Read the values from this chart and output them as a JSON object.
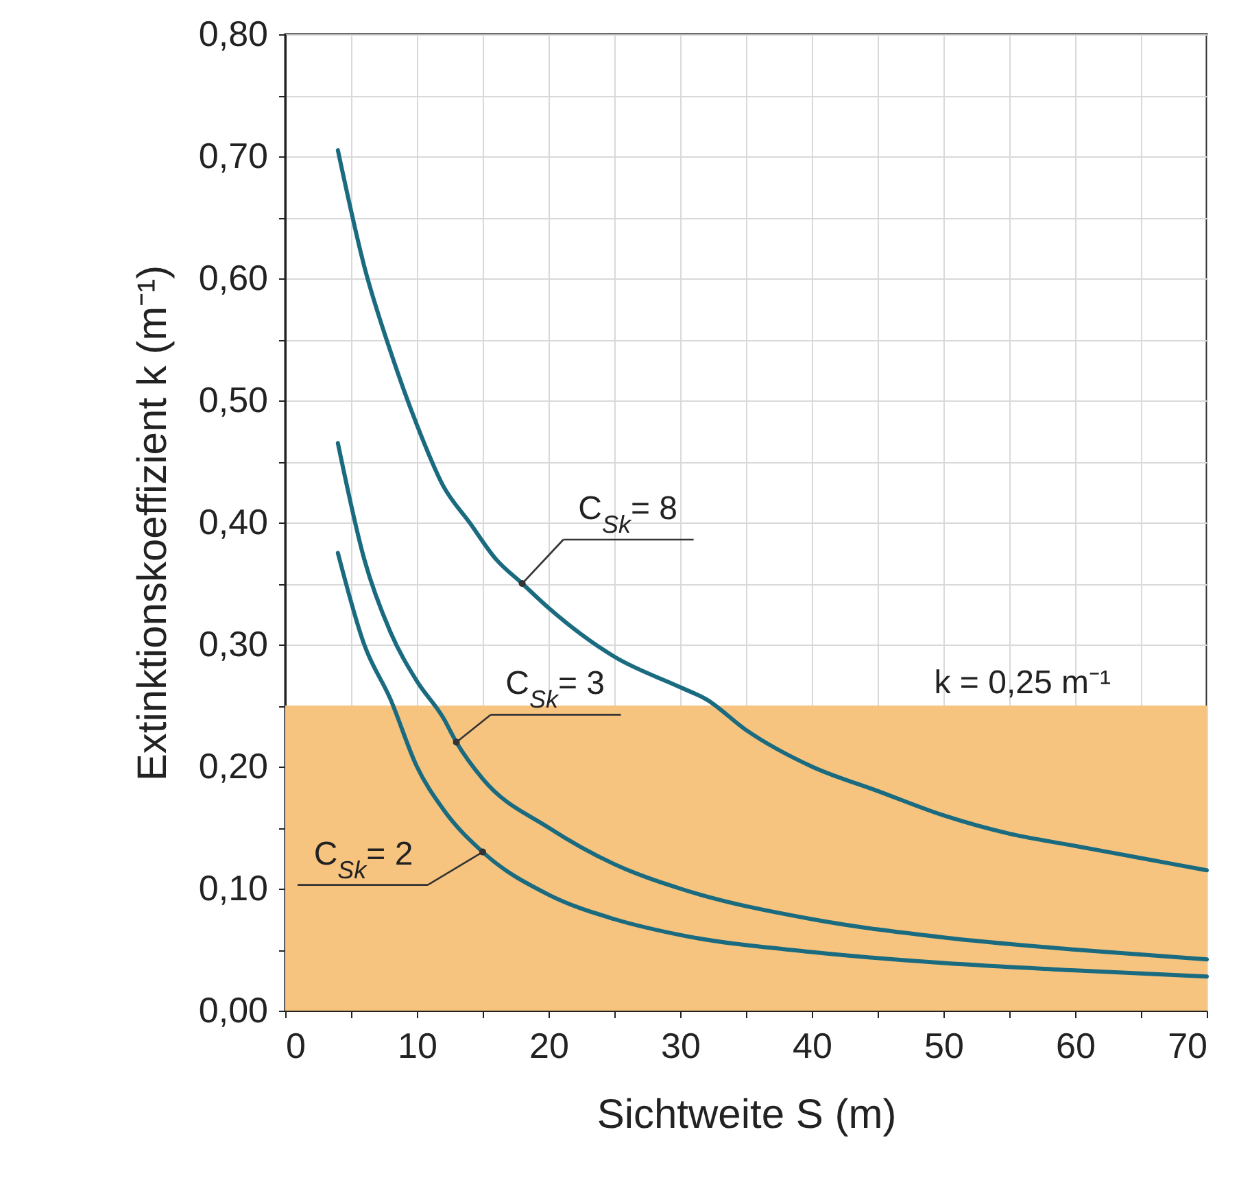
{
  "chart_data": {
    "type": "line",
    "xlabel": "Sichtweite S (m)",
    "ylabel": "Extinktionskoeffizient  k (m⁻¹)",
    "xlim": [
      0,
      70
    ],
    "ylim": [
      0,
      0.8
    ],
    "xticks": [
      0,
      {
        "value": 5,
        "label": null
      },
      10,
      {
        "value": 15,
        "label": null
      },
      20,
      {
        "value": 25,
        "label": null
      },
      30,
      {
        "value": 35,
        "label": null
      },
      40,
      {
        "value": 45,
        "label": null
      },
      50,
      {
        "value": 55,
        "label": null
      },
      60,
      {
        "value": 65,
        "label": null
      },
      70
    ],
    "yticks": [
      {
        "value": 0,
        "label": "0,00"
      },
      {
        "value": 0.05,
        "label": null
      },
      {
        "value": 0.1,
        "label": "0,10"
      },
      {
        "value": 0.15,
        "label": null
      },
      {
        "value": 0.2,
        "label": "0,20"
      },
      {
        "value": 0.25,
        "label": null
      },
      {
        "value": 0.3,
        "label": "0,30"
      },
      {
        "value": 0.35,
        "label": null
      },
      {
        "value": 0.4,
        "label": "0,40"
      },
      {
        "value": 0.45,
        "label": null
      },
      {
        "value": 0.5,
        "label": "0,50"
      },
      {
        "value": 0.55,
        "label": null
      },
      {
        "value": 0.6,
        "label": "0,60"
      },
      {
        "value": 0.65,
        "label": null
      },
      {
        "value": 0.7,
        "label": "0,70"
      },
      {
        "value": 0.75,
        "label": null
      },
      {
        "value": 0.8,
        "label": "0,80"
      }
    ],
    "grid": true,
    "line_style": "solid",
    "marker": "none",
    "series": [
      {
        "color": "#1a6b80",
        "x": [
          4,
          6,
          8,
          10,
          12,
          14,
          16,
          18,
          20,
          25,
          30,
          32,
          35,
          40,
          45,
          50,
          55,
          60,
          65,
          70
        ],
        "values": [
          0.705,
          0.61,
          0.54,
          0.48,
          0.43,
          0.4,
          0.37,
          0.35,
          0.33,
          0.29,
          0.265,
          0.255,
          0.23,
          0.2,
          0.18,
          0.16,
          0.145,
          0.135,
          0.125,
          0.115
        ]
      },
      {
        "color": "#1a6b80",
        "x": [
          4,
          6,
          8,
          10,
          12,
          13,
          15,
          20,
          25,
          30,
          40,
          50,
          60,
          70
        ],
        "values": [
          0.465,
          0.37,
          0.31,
          0.27,
          0.24,
          0.22,
          0.19,
          0.15,
          0.12,
          0.1,
          0.075,
          0.06,
          0.05,
          0.042
        ]
      },
      {
        "color": "#1a6b80",
        "x": [
          4,
          6,
          8,
          10,
          12,
          15,
          20,
          25,
          30,
          40,
          50,
          60,
          70
        ],
        "values": [
          0.375,
          0.3,
          0.255,
          0.2,
          0.165,
          0.13,
          0.095,
          0.075,
          0.062,
          0.048,
          0.039,
          0.033,
          0.028
        ]
      }
    ],
    "bands": [
      {
        "axis": "y",
        "from": 0,
        "to": 0.25,
        "label": "k = 0,25 m⁻¹",
        "color": "#f7c47f"
      }
    ],
    "annotations": [
      {
        "text": "C$_{Sk}$= 8",
        "x": 18,
        "y": 0.35
      },
      {
        "text": "C$_{Sk}$= 3",
        "x": 13,
        "y": 0.22
      },
      {
        "text": "C$_{Sk}$= 2",
        "x": 15,
        "y": 0.13
      }
    ]
  }
}
